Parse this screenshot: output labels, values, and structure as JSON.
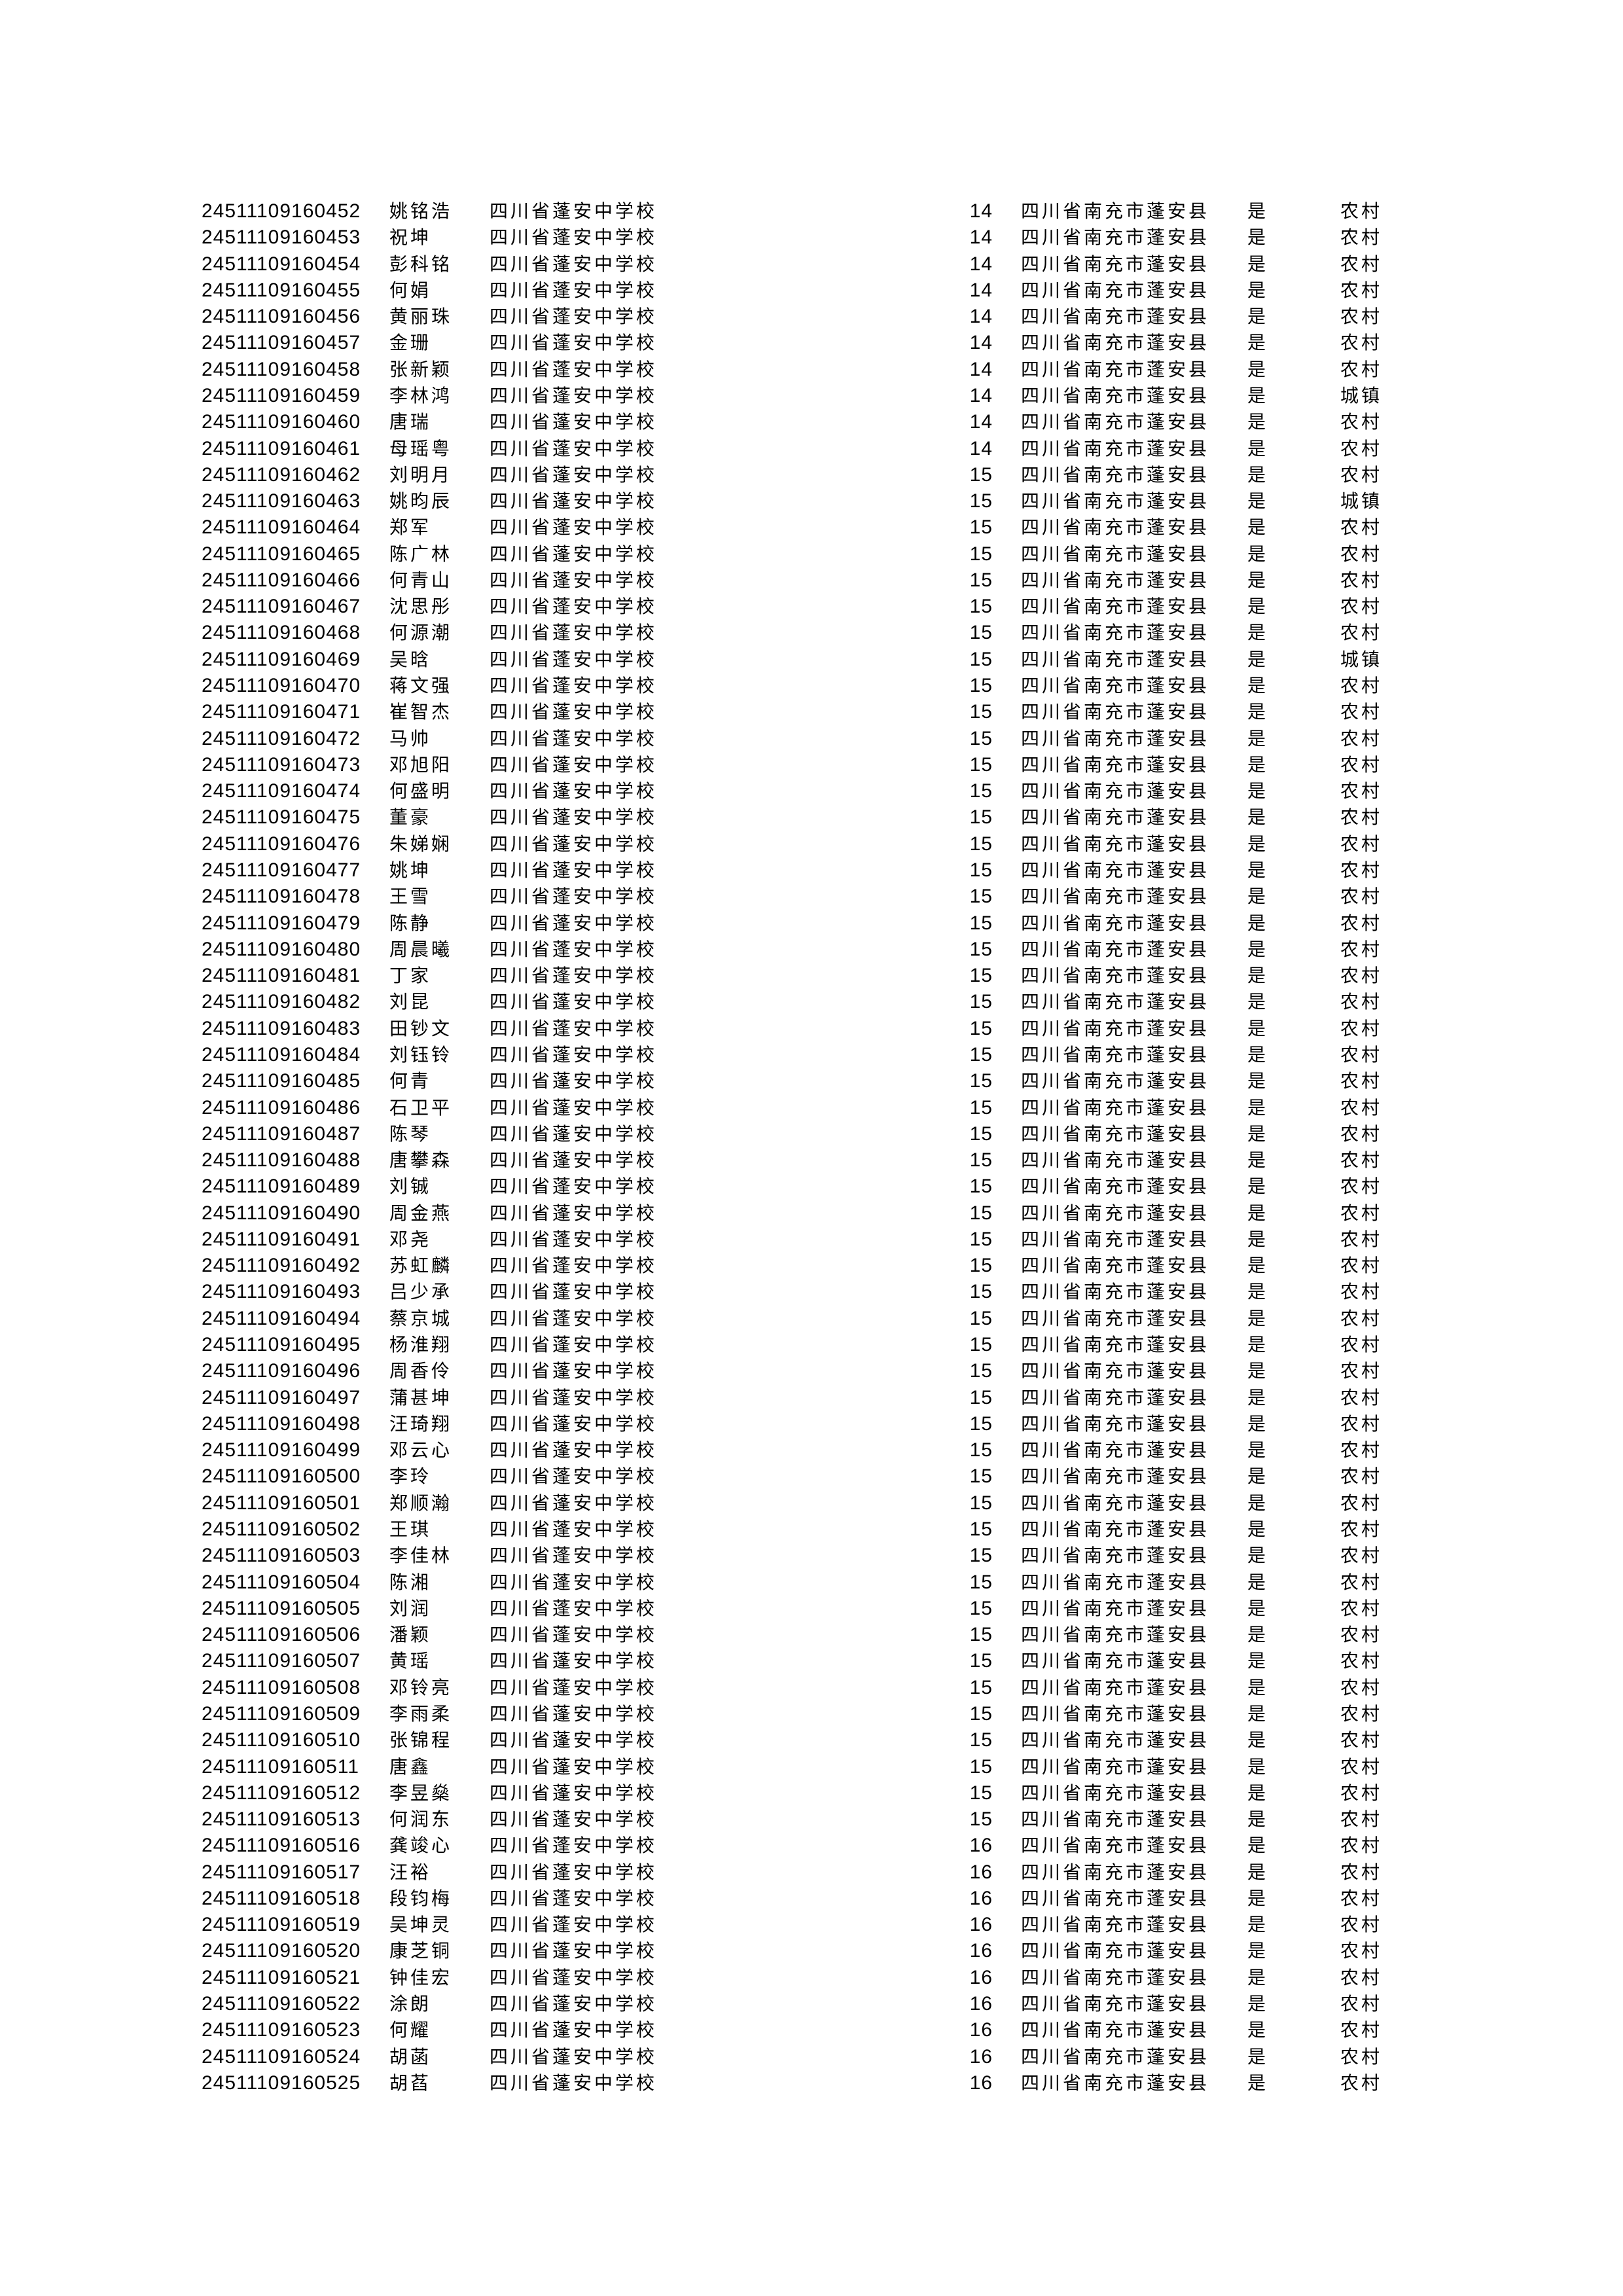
{
  "page": {
    "background": "#ffffff",
    "text_color": "#000000"
  },
  "table": {
    "constants": {
      "school": "四川省蓬安中学校",
      "region": "四川省南充市蓬安县",
      "flag": "是"
    },
    "residence_values": [
      "农村",
      "城镇"
    ],
    "rows": [
      {
        "id": "24511109160452",
        "name": "姚铭浩",
        "age": "14",
        "residence": "农村"
      },
      {
        "id": "24511109160453",
        "name": "祝坤",
        "age": "14",
        "residence": "农村"
      },
      {
        "id": "24511109160454",
        "name": "彭科铭",
        "age": "14",
        "residence": "农村"
      },
      {
        "id": "24511109160455",
        "name": "何娟",
        "age": "14",
        "residence": "农村"
      },
      {
        "id": "24511109160456",
        "name": "黄丽珠",
        "age": "14",
        "residence": "农村"
      },
      {
        "id": "24511109160457",
        "name": "金珊",
        "age": "14",
        "residence": "农村"
      },
      {
        "id": "24511109160458",
        "name": "张新颖",
        "age": "14",
        "residence": "农村"
      },
      {
        "id": "24511109160459",
        "name": "李林鸿",
        "age": "14",
        "residence": "城镇"
      },
      {
        "id": "24511109160460",
        "name": "唐瑞",
        "age": "14",
        "residence": "农村"
      },
      {
        "id": "24511109160461",
        "name": "母瑶粤",
        "age": "14",
        "residence": "农村"
      },
      {
        "id": "24511109160462",
        "name": "刘明月",
        "age": "15",
        "residence": "农村"
      },
      {
        "id": "24511109160463",
        "name": "姚昀辰",
        "age": "15",
        "residence": "城镇"
      },
      {
        "id": "24511109160464",
        "name": "郑军",
        "age": "15",
        "residence": "农村"
      },
      {
        "id": "24511109160465",
        "name": "陈广林",
        "age": "15",
        "residence": "农村"
      },
      {
        "id": "24511109160466",
        "name": "何青山",
        "age": "15",
        "residence": "农村"
      },
      {
        "id": "24511109160467",
        "name": "沈思彤",
        "age": "15",
        "residence": "农村"
      },
      {
        "id": "24511109160468",
        "name": "何源潮",
        "age": "15",
        "residence": "农村"
      },
      {
        "id": "24511109160469",
        "name": "吴晗",
        "age": "15",
        "residence": "城镇"
      },
      {
        "id": "24511109160470",
        "name": "蒋文强",
        "age": "15",
        "residence": "农村"
      },
      {
        "id": "24511109160471",
        "name": "崔智杰",
        "age": "15",
        "residence": "农村"
      },
      {
        "id": "24511109160472",
        "name": "马帅",
        "age": "15",
        "residence": "农村"
      },
      {
        "id": "24511109160473",
        "name": "邓旭阳",
        "age": "15",
        "residence": "农村"
      },
      {
        "id": "24511109160474",
        "name": "何盛明",
        "age": "15",
        "residence": "农村"
      },
      {
        "id": "24511109160475",
        "name": "董豪",
        "age": "15",
        "residence": "农村"
      },
      {
        "id": "24511109160476",
        "name": "朱娣娴",
        "age": "15",
        "residence": "农村"
      },
      {
        "id": "24511109160477",
        "name": "姚坤",
        "age": "15",
        "residence": "农村"
      },
      {
        "id": "24511109160478",
        "name": "王雪",
        "age": "15",
        "residence": "农村"
      },
      {
        "id": "24511109160479",
        "name": "陈静",
        "age": "15",
        "residence": "农村"
      },
      {
        "id": "24511109160480",
        "name": "周晨曦",
        "age": "15",
        "residence": "农村"
      },
      {
        "id": "24511109160481",
        "name": "丁家",
        "age": "15",
        "residence": "农村"
      },
      {
        "id": "24511109160482",
        "name": "刘昆",
        "age": "15",
        "residence": "农村"
      },
      {
        "id": "24511109160483",
        "name": "田钞文",
        "age": "15",
        "residence": "农村"
      },
      {
        "id": "24511109160484",
        "name": "刘钰铃",
        "age": "15",
        "residence": "农村"
      },
      {
        "id": "24511109160485",
        "name": "何青",
        "age": "15",
        "residence": "农村"
      },
      {
        "id": "24511109160486",
        "name": "石卫平",
        "age": "15",
        "residence": "农村"
      },
      {
        "id": "24511109160487",
        "name": "陈琴",
        "age": "15",
        "residence": "农村"
      },
      {
        "id": "24511109160488",
        "name": "唐攀森",
        "age": "15",
        "residence": "农村"
      },
      {
        "id": "24511109160489",
        "name": "刘铖",
        "age": "15",
        "residence": "农村"
      },
      {
        "id": "24511109160490",
        "name": "周金燕",
        "age": "15",
        "residence": "农村"
      },
      {
        "id": "24511109160491",
        "name": "邓尧",
        "age": "15",
        "residence": "农村"
      },
      {
        "id": "24511109160492",
        "name": "苏虹麟",
        "age": "15",
        "residence": "农村"
      },
      {
        "id": "24511109160493",
        "name": "吕少承",
        "age": "15",
        "residence": "农村"
      },
      {
        "id": "24511109160494",
        "name": "蔡京城",
        "age": "15",
        "residence": "农村"
      },
      {
        "id": "24511109160495",
        "name": "杨淮翔",
        "age": "15",
        "residence": "农村"
      },
      {
        "id": "24511109160496",
        "name": "周香伶",
        "age": "15",
        "residence": "农村"
      },
      {
        "id": "24511109160497",
        "name": "蒲甚坤",
        "age": "15",
        "residence": "农村"
      },
      {
        "id": "24511109160498",
        "name": "汪琦翔",
        "age": "15",
        "residence": "农村"
      },
      {
        "id": "24511109160499",
        "name": "邓云心",
        "age": "15",
        "residence": "农村"
      },
      {
        "id": "24511109160500",
        "name": "李玲",
        "age": "15",
        "residence": "农村"
      },
      {
        "id": "24511109160501",
        "name": "郑顺瀚",
        "age": "15",
        "residence": "农村"
      },
      {
        "id": "24511109160502",
        "name": "王琪",
        "age": "15",
        "residence": "农村"
      },
      {
        "id": "24511109160503",
        "name": "李佳林",
        "age": "15",
        "residence": "农村"
      },
      {
        "id": "24511109160504",
        "name": "陈湘",
        "age": "15",
        "residence": "农村"
      },
      {
        "id": "24511109160505",
        "name": "刘润",
        "age": "15",
        "residence": "农村"
      },
      {
        "id": "24511109160506",
        "name": "潘颖",
        "age": "15",
        "residence": "农村"
      },
      {
        "id": "24511109160507",
        "name": "黄瑶",
        "age": "15",
        "residence": "农村"
      },
      {
        "id": "24511109160508",
        "name": "邓铃亮",
        "age": "15",
        "residence": "农村"
      },
      {
        "id": "24511109160509",
        "name": "李雨柔",
        "age": "15",
        "residence": "农村"
      },
      {
        "id": "24511109160510",
        "name": "张锦程",
        "age": "15",
        "residence": "农村"
      },
      {
        "id": "24511109160511",
        "name": "唐鑫",
        "age": "15",
        "residence": "农村"
      },
      {
        "id": "24511109160512",
        "name": "李昱燊",
        "age": "15",
        "residence": "农村"
      },
      {
        "id": "24511109160513",
        "name": "何润东",
        "age": "15",
        "residence": "农村"
      },
      {
        "id": "24511109160516",
        "name": "龚竣心",
        "age": "16",
        "residence": "农村"
      },
      {
        "id": "24511109160517",
        "name": "汪裕",
        "age": "16",
        "residence": "农村"
      },
      {
        "id": "24511109160518",
        "name": "段钧梅",
        "age": "16",
        "residence": "农村"
      },
      {
        "id": "24511109160519",
        "name": "吴坤灵",
        "age": "16",
        "residence": "农村"
      },
      {
        "id": "24511109160520",
        "name": "康芝铜",
        "age": "16",
        "residence": "农村"
      },
      {
        "id": "24511109160521",
        "name": "钟佳宏",
        "age": "16",
        "residence": "农村"
      },
      {
        "id": "24511109160522",
        "name": "涂朗",
        "age": "16",
        "residence": "农村"
      },
      {
        "id": "24511109160523",
        "name": "何耀",
        "age": "16",
        "residence": "农村"
      },
      {
        "id": "24511109160524",
        "name": "胡菡",
        "age": "16",
        "residence": "农村"
      },
      {
        "id": "24511109160525",
        "name": "胡萏",
        "age": "16",
        "residence": "农村"
      }
    ]
  }
}
